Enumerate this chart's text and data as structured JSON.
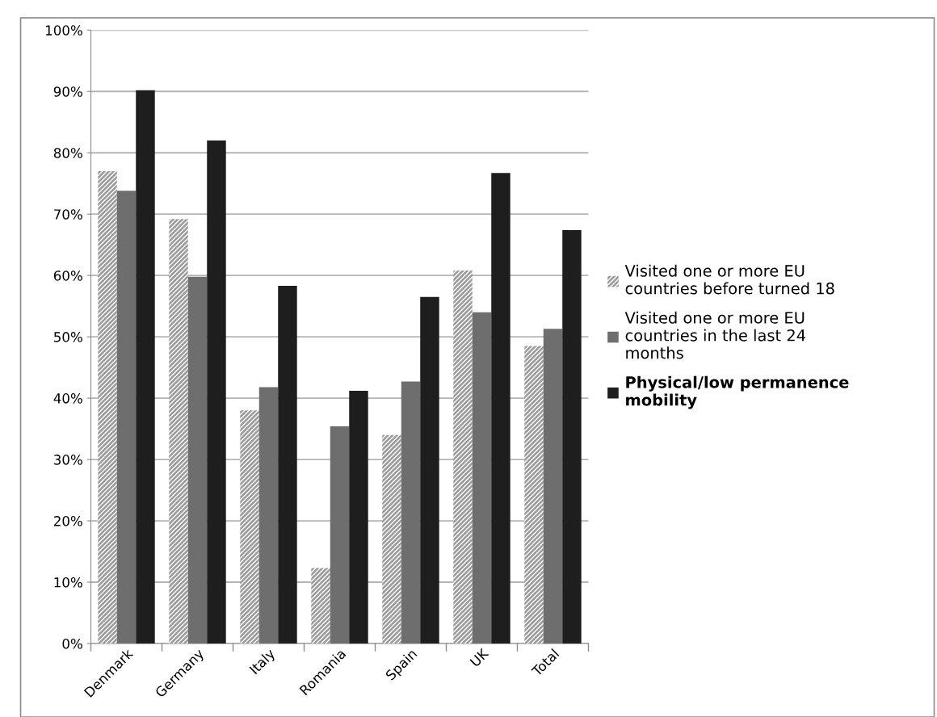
{
  "chart_data": {
    "type": "bar",
    "categories": [
      "Denmark",
      "Germany",
      "Italy",
      "Romania",
      "Spain",
      "UK",
      "Total"
    ],
    "series": [
      {
        "name": "Visited one or more EU countries before turned 18",
        "color": "#9a9a9a",
        "values": [
          77,
          69.2,
          38,
          12.3,
          34,
          60.8,
          48.5
        ]
      },
      {
        "name": "Visited one or more EU countries in the last 24 months",
        "color": "#6e6e6e",
        "values": [
          73.8,
          59.8,
          41.8,
          35.4,
          42.7,
          54,
          51.3
        ]
      },
      {
        "name": "Physical/low permanence mobility",
        "color": "#1e1e1e",
        "values": [
          90.2,
          82,
          58.3,
          41.2,
          56.5,
          76.7,
          67.4
        ]
      }
    ],
    "ylim": [
      0,
      100
    ],
    "yticks": [
      {
        "value": 0,
        "label": "0%"
      },
      {
        "value": 10,
        "label": "10%"
      },
      {
        "value": 20,
        "label": "20%"
      },
      {
        "value": 30,
        "label": "30%"
      },
      {
        "value": 40,
        "label": "40%"
      },
      {
        "value": 50,
        "label": "50%"
      },
      {
        "value": 60,
        "label": "60%"
      },
      {
        "value": 70,
        "label": "70%"
      },
      {
        "value": 80,
        "label": "80%"
      },
      {
        "value": 90,
        "label": "90%"
      },
      {
        "value": 100,
        "label": "100%"
      }
    ],
    "grid": "y",
    "legend": "right"
  }
}
